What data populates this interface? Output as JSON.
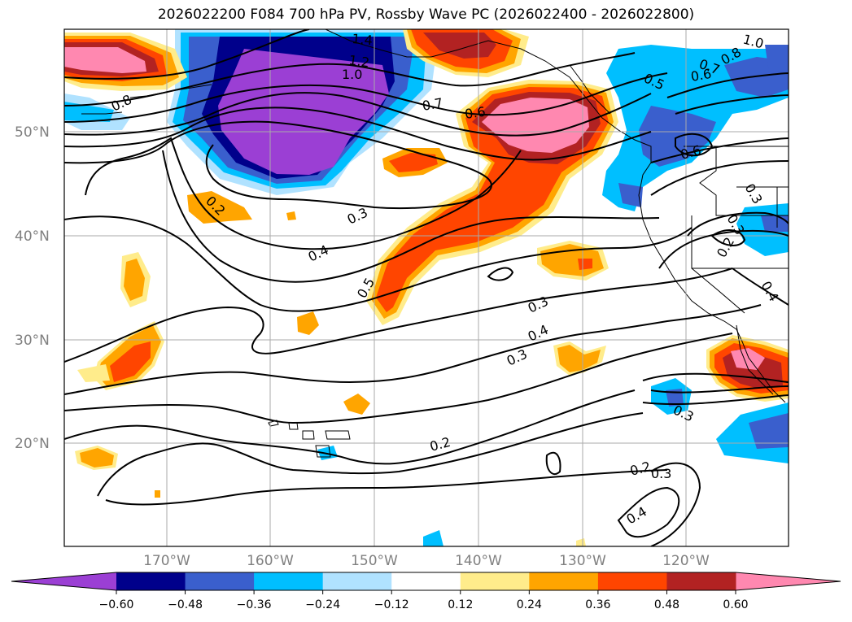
{
  "title": "2026022200 F084 700 hPa PV, Rossby Wave PC (2026022400 - 2026022800)",
  "lat_labels": [
    "50°N",
    "40°N",
    "30°N",
    "20°N"
  ],
  "lon_labels": [
    "170°W",
    "160°W",
    "150°W",
    "140°W",
    "130°W",
    "120°W"
  ],
  "contour_labels": [
    "1.4",
    "1.2",
    "1.0",
    "0.8",
    "0.7",
    "0.6",
    "0.5",
    "0.4",
    "0.3",
    "0.2",
    "0.3",
    "0.2",
    "0.3",
    "0.4",
    "0.5",
    "0.6",
    "0.7",
    "0.8",
    "1.0",
    "0.6",
    "0.3",
    "0.3",
    "0.2",
    "0.4",
    "0.2",
    "0.3",
    "0.4",
    "0.3"
  ],
  "colorbar": {
    "ticks": [
      "−0.60",
      "−0.48",
      "−0.36",
      "−0.24",
      "−0.12",
      "0.12",
      "0.24",
      "0.36",
      "0.48",
      "0.60"
    ],
    "colors": [
      "#9b3fd4",
      "#00008b",
      "#3a5fcd",
      "#00bfff",
      "#b0e2ff",
      "#ffffff",
      "#ffec8b",
      "#ffa500",
      "#ff4500",
      "#b22222",
      "#ff88b0"
    ]
  }
}
